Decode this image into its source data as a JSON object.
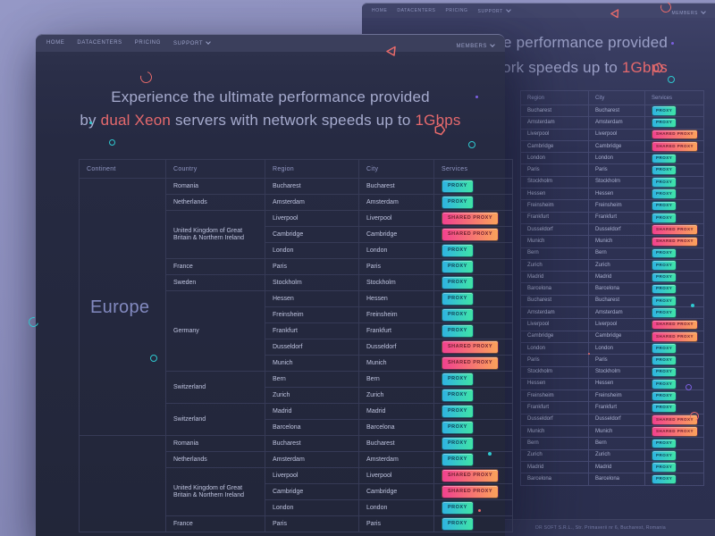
{
  "theme": {
    "page_background": "#8e90bf",
    "front_card_background": "#262a42",
    "back_card_background": "#303456",
    "accent_highlight": "#e5696d",
    "badge_proxy_gradient": [
      "#2fb3e2",
      "#3fe4a6"
    ],
    "badge_shared_proxy_gradient": [
      "#f1418f",
      "#fba25a"
    ],
    "deco_pink": "#e96b6b",
    "deco_cyan": "#35d2d2",
    "deco_purple": "#7b5fe0"
  },
  "nav": {
    "items": [
      "HOME",
      "DATACENTERS",
      "PRICING",
      "SUPPORT"
    ],
    "dropdown_item": "SUPPORT",
    "members_label": "MEMBERS"
  },
  "heading": {
    "line1": "Experience the ultimate performance provided",
    "line2_prefix": "by ",
    "line2_highlight1": "dual Xeon",
    "line2_middle": " servers with network speeds up to ",
    "line2_highlight2": "1Gbps"
  },
  "front_table": {
    "headers": [
      "Continent",
      "Country",
      "Region",
      "City",
      "Services"
    ],
    "continents": [
      {
        "name": "Europe",
        "countries": [
          {
            "name": "Romania",
            "rows": [
              [
                "Bucharest",
                "Bucharest",
                "PROXY"
              ]
            ]
          },
          {
            "name": "Netherlands",
            "rows": [
              [
                "Amsterdam",
                "Amsterdam",
                "PROXY"
              ]
            ]
          },
          {
            "name": "United Kingdom of Great Britain & Northern Ireland",
            "rows": [
              [
                "Liverpool",
                "Liverpool",
                "SHARED PROXY"
              ],
              [
                "Cambridge",
                "Cambridge",
                "SHARED PROXY"
              ],
              [
                "London",
                "London",
                "PROXY"
              ]
            ]
          },
          {
            "name": "France",
            "rows": [
              [
                "Paris",
                "Paris",
                "PROXY"
              ]
            ]
          },
          {
            "name": "Sweden",
            "rows": [
              [
                "Stockholm",
                "Stockholm",
                "PROXY"
              ]
            ]
          },
          {
            "name": "Germany",
            "rows": [
              [
                "Hessen",
                "Hessen",
                "PROXY"
              ],
              [
                "Freinsheim",
                "Freinsheim",
                "PROXY"
              ],
              [
                "Frankfurt",
                "Frankfurt",
                "PROXY"
              ],
              [
                "Dusseldorf",
                "Dusseldorf",
                "SHARED PROXY"
              ],
              [
                "Munich",
                "Munich",
                "SHARED PROXY"
              ]
            ]
          },
          {
            "name": "Switzerland",
            "rows": [
              [
                "Bern",
                "Bern",
                "PROXY"
              ],
              [
                "Zurich",
                "Zurich",
                "PROXY"
              ]
            ]
          },
          {
            "name": "Switzerland",
            "rows": [
              [
                "Madrid",
                "Madrid",
                "PROXY"
              ],
              [
                "Barcelona",
                "Barcelona",
                "PROXY"
              ]
            ]
          }
        ]
      },
      {
        "name": "",
        "countries": [
          {
            "name": "Romania",
            "rows": [
              [
                "Bucharest",
                "Bucharest",
                "PROXY"
              ]
            ]
          },
          {
            "name": "Netherlands",
            "rows": [
              [
                "Amsterdam",
                "Amsterdam",
                "PROXY"
              ]
            ]
          },
          {
            "name": "United Kingdom of Great Britain & Northern Ireland",
            "rows": [
              [
                "Liverpool",
                "Liverpool",
                "SHARED PROXY"
              ],
              [
                "Cambridge",
                "Cambridge",
                "SHARED PROXY"
              ],
              [
                "London",
                "London",
                "PROXY"
              ]
            ]
          },
          {
            "name": "France",
            "rows": [
              [
                "Paris",
                "Paris",
                "PROXY"
              ]
            ]
          }
        ]
      }
    ]
  },
  "back_table": {
    "headers": [
      "Region",
      "City",
      "Services"
    ],
    "rows": [
      [
        "Bucharest",
        "Bucharest",
        "PROXY"
      ],
      [
        "Amsterdam",
        "Amsterdam",
        "PROXY"
      ],
      [
        "Liverpool",
        "Liverpool",
        "SHARED PROXY"
      ],
      [
        "Cambridge",
        "Cambridge",
        "SHARED PROXY"
      ],
      [
        "London",
        "London",
        "PROXY"
      ],
      [
        "Paris",
        "Paris",
        "PROXY"
      ],
      [
        "Stockholm",
        "Stockholm",
        "PROXY"
      ],
      [
        "Hessen",
        "Hessen",
        "PROXY"
      ],
      [
        "Freinsheim",
        "Freinsheim",
        "PROXY"
      ],
      [
        "Frankfurt",
        "Frankfurt",
        "PROXY"
      ],
      [
        "Dusseldorf",
        "Dusseldorf",
        "SHARED PROXY"
      ],
      [
        "Munich",
        "Munich",
        "SHARED PROXY"
      ],
      [
        "Bern",
        "Bern",
        "PROXY"
      ],
      [
        "Zurich",
        "Zurich",
        "PROXY"
      ],
      [
        "Madrid",
        "Madrid",
        "PROXY"
      ],
      [
        "Barcelona",
        "Barcelona",
        "PROXY"
      ],
      [
        "Bucharest",
        "Bucharest",
        "PROXY"
      ],
      [
        "Amsterdam",
        "Amsterdam",
        "PROXY"
      ],
      [
        "Liverpool",
        "Liverpool",
        "SHARED PROXY"
      ],
      [
        "Cambridge",
        "Cambridge",
        "SHARED PROXY"
      ],
      [
        "London",
        "London",
        "PROXY"
      ],
      [
        "Paris",
        "Paris",
        "PROXY"
      ],
      [
        "Stockholm",
        "Stockholm",
        "PROXY"
      ],
      [
        "Hessen",
        "Hessen",
        "PROXY"
      ],
      [
        "Freinsheim",
        "Freinsheim",
        "PROXY"
      ],
      [
        "Frankfurt",
        "Frankfurt",
        "PROXY"
      ],
      [
        "Dusseldorf",
        "Dusseldorf",
        "SHARED PROXY"
      ],
      [
        "Munich",
        "Munich",
        "SHARED PROXY"
      ],
      [
        "Bern",
        "Bern",
        "PROXY"
      ],
      [
        "Zurich",
        "Zurich",
        "PROXY"
      ],
      [
        "Madrid",
        "Madrid",
        "PROXY"
      ],
      [
        "Barcelona",
        "Barcelona",
        "PROXY"
      ]
    ]
  },
  "footer": {
    "text": "DR SOFT S.R.L., Str. Primaverii nr 6, Bucharest, Romania"
  }
}
